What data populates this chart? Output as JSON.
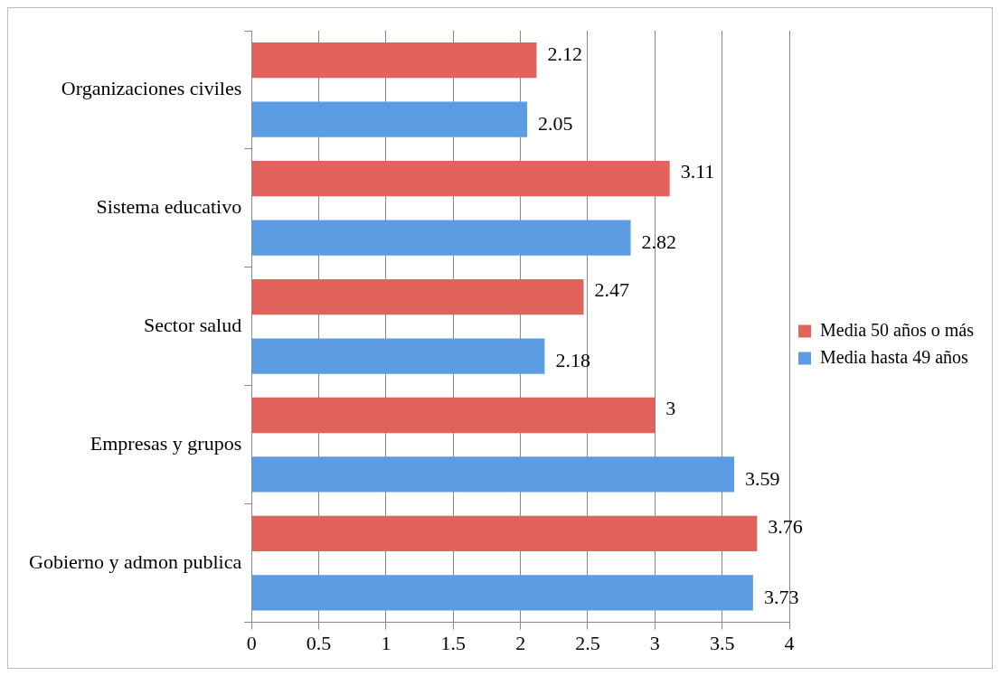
{
  "chart_data": {
    "type": "bar",
    "orientation": "horizontal",
    "categories": [
      "Organizaciones civiles",
      "Sistema educativo",
      "Sector salud",
      "Empresas y grupos",
      "Gobierno y admon publica"
    ],
    "series": [
      {
        "name": "Media 50 años o más",
        "color": "#e2625c",
        "values": [
          2.12,
          3.11,
          2.47,
          3,
          3.76
        ]
      },
      {
        "name": "Media hasta 49 años",
        "color": "#5c9ce2",
        "values": [
          2.05,
          2.82,
          2.18,
          3.59,
          3.73
        ]
      }
    ],
    "xlim": [
      0,
      4
    ],
    "xticks": [
      0,
      0.5,
      1,
      1.5,
      2,
      2.5,
      3,
      3.5,
      4
    ],
    "grid": "x",
    "legend": "right",
    "data_labels": true
  }
}
